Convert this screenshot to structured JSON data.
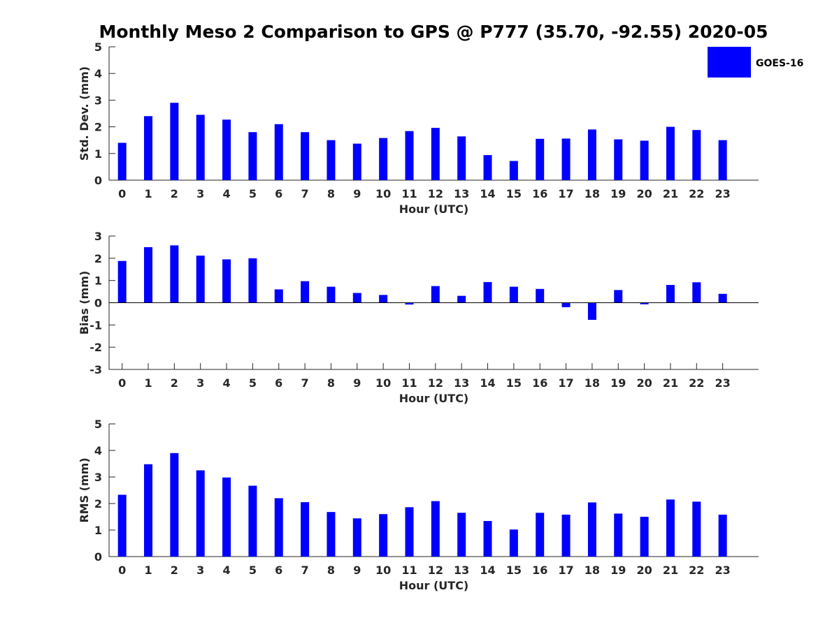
{
  "title": "Monthly Meso 2 Comparison to GPS @ P777 (35.70, -92.55) 2020-05",
  "legend": {
    "label": "GOES-16",
    "placement": "top-right"
  },
  "colors": {
    "bar": "#0000ff",
    "axis": "#262626"
  },
  "chart_data": [
    {
      "type": "bar",
      "xlabel": "Hour (UTC)",
      "ylabel": "Std. Dev. (mm)",
      "ylim": [
        0,
        5
      ],
      "yticks": [
        0,
        1,
        2,
        3,
        4,
        5
      ],
      "categories": [
        "0",
        "1",
        "2",
        "3",
        "4",
        "5",
        "6",
        "7",
        "8",
        "9",
        "10",
        "11",
        "12",
        "13",
        "14",
        "15",
        "16",
        "17",
        "18",
        "19",
        "20",
        "21",
        "22",
        "23"
      ],
      "series": [
        {
          "name": "GOES-16",
          "values": [
            1.4,
            2.4,
            2.9,
            2.45,
            2.27,
            1.8,
            2.1,
            1.8,
            1.5,
            1.37,
            1.58,
            1.84,
            1.96,
            1.64,
            0.94,
            0.72,
            1.55,
            1.56,
            1.9,
            1.53,
            1.48,
            2.0,
            1.88,
            1.5
          ]
        }
      ],
      "grid": false
    },
    {
      "type": "bar",
      "xlabel": "Hour (UTC)",
      "ylabel": "Bias (mm)",
      "ylim": [
        -3,
        3
      ],
      "yticks": [
        -3,
        -2,
        -1,
        0,
        1,
        2,
        3
      ],
      "categories": [
        "0",
        "1",
        "2",
        "3",
        "4",
        "5",
        "6",
        "7",
        "8",
        "9",
        "10",
        "11",
        "12",
        "13",
        "14",
        "15",
        "16",
        "17",
        "18",
        "19",
        "20",
        "21",
        "22",
        "23"
      ],
      "series": [
        {
          "name": "GOES-16",
          "values": [
            1.88,
            2.5,
            2.58,
            2.12,
            1.95,
            2.0,
            0.6,
            0.97,
            0.72,
            0.44,
            0.35,
            -0.08,
            0.75,
            0.31,
            0.93,
            0.72,
            0.62,
            -0.2,
            -0.77,
            0.57,
            -0.07,
            0.8,
            0.92,
            0.4
          ]
        }
      ],
      "grid": false
    },
    {
      "type": "bar",
      "xlabel": "Hour (UTC)",
      "ylabel": "RMS (mm)",
      "ylim": [
        0,
        5
      ],
      "yticks": [
        0,
        1,
        2,
        3,
        4,
        5
      ],
      "categories": [
        "0",
        "1",
        "2",
        "3",
        "4",
        "5",
        "6",
        "7",
        "8",
        "9",
        "10",
        "11",
        "12",
        "13",
        "14",
        "15",
        "16",
        "17",
        "18",
        "19",
        "20",
        "21",
        "22",
        "23"
      ],
      "series": [
        {
          "name": "GOES-16",
          "values": [
            2.33,
            3.48,
            3.9,
            3.25,
            2.98,
            2.67,
            2.2,
            2.05,
            1.68,
            1.44,
            1.6,
            1.86,
            2.09,
            1.65,
            1.34,
            1.02,
            1.65,
            1.58,
            2.04,
            1.62,
            1.5,
            2.15,
            2.07,
            1.58
          ]
        }
      ],
      "grid": false
    }
  ]
}
